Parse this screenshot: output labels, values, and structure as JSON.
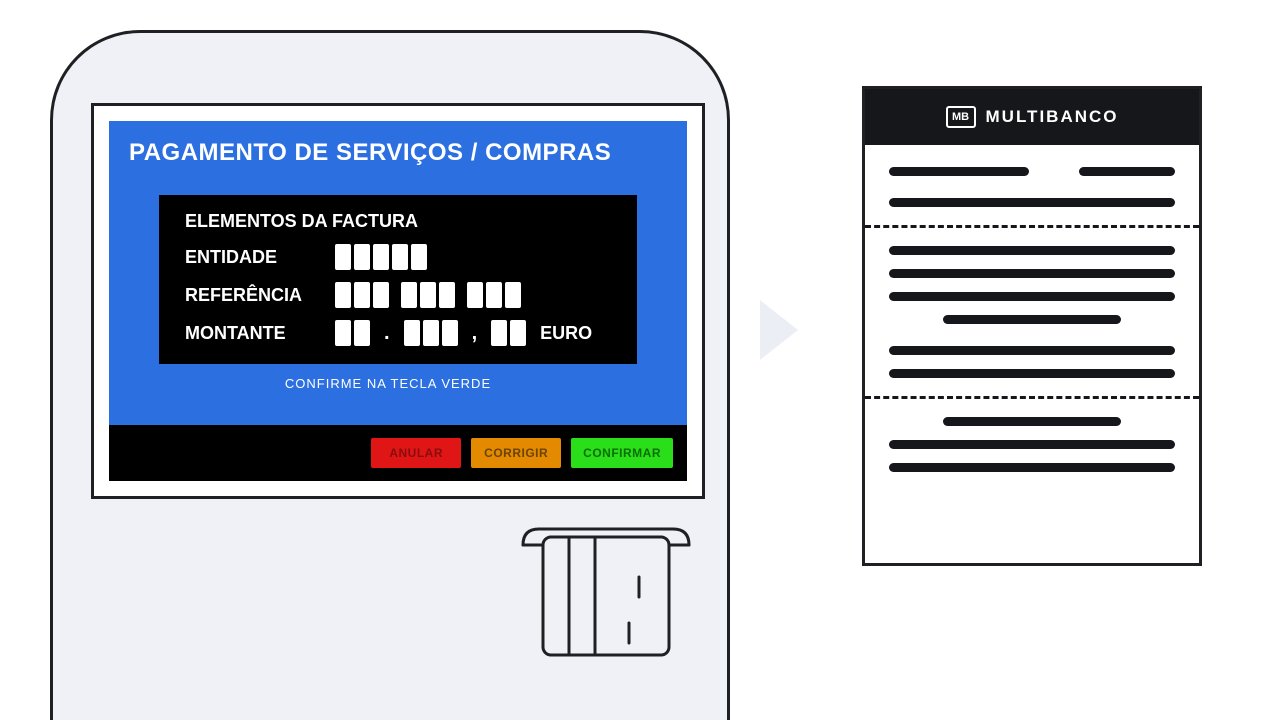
{
  "colors": {
    "page_bg": "#ffffff",
    "terminal_bg": "#f0f0f7",
    "outline": "#1f2023",
    "screen_blue": "#2b6fe0",
    "panel_black": "#000000",
    "text_white": "#ffffff",
    "btn_cancel_bg": "#e01515",
    "btn_cancel_fg": "#8a0d0d",
    "btn_correct_bg": "#e38a00",
    "btn_correct_fg": "#6a4400",
    "btn_confirm_bg": "#2adf1a",
    "btn_confirm_fg": "#0c6e06",
    "arrow": "#eceef5",
    "receipt_header_bg": "#16171a"
  },
  "terminal": {
    "screen": {
      "title": "PAGAMENTO DE SERVIÇOS / COMPRAS",
      "invoice": {
        "header": "ELEMENTOS DA FACTURA",
        "entity": {
          "label": "ENTIDADE",
          "digit_groups": [
            5
          ]
        },
        "reference": {
          "label": "REFERÊNCIA",
          "digit_groups": [
            3,
            3,
            3
          ]
        },
        "amount": {
          "label": "MONTANTE",
          "digit_groups": [
            2,
            3,
            2
          ],
          "separators": [
            ".",
            ","
          ],
          "currency": "EURO"
        }
      },
      "hint": "CONFIRME NA TECLA VERDE",
      "buttons": {
        "cancel": "ANULAR",
        "correct": "CORRIGIR",
        "confirm": "CONFIRMAR"
      }
    }
  },
  "receipt": {
    "brand": "MULTIBANCO",
    "logo_text": "MB",
    "layout": {
      "top_row": [
        "short1",
        "short2"
      ],
      "section1": [
        "full"
      ],
      "section2": [
        "full",
        "full",
        "full",
        "center"
      ],
      "section3": [
        "full",
        "full"
      ],
      "section4": [
        "center",
        "full",
        "full"
      ]
    }
  }
}
